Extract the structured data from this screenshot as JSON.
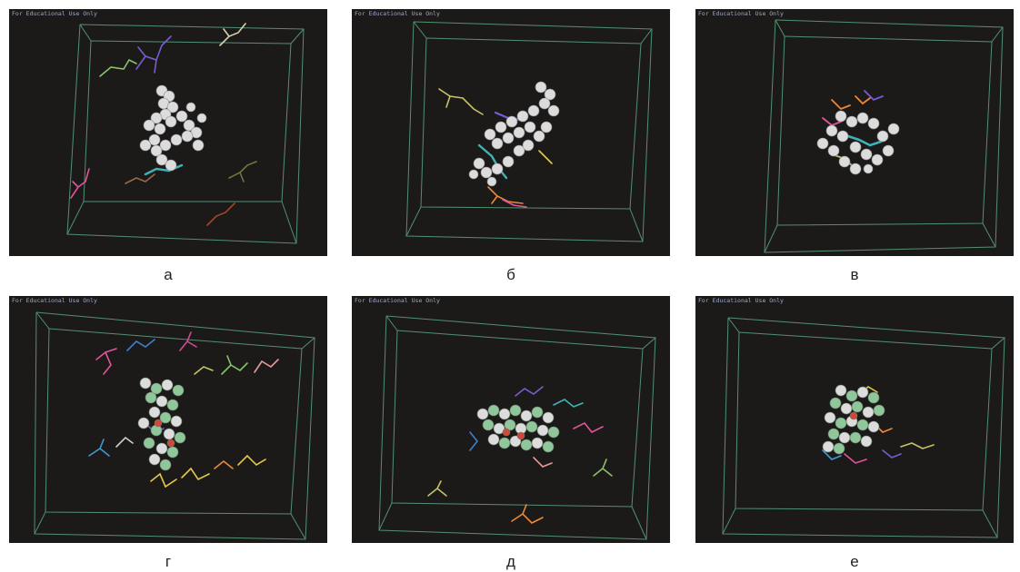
{
  "figure": {
    "panels": [
      {
        "label": "а",
        "watermark": "For Educational Use Only"
      },
      {
        "label": "б",
        "watermark": "For Educational Use Only"
      },
      {
        "label": "в",
        "watermark": "For Educational Use Only"
      },
      {
        "label": "г",
        "watermark": "For Educational Use Only"
      },
      {
        "label": "д",
        "watermark": "For Educational Use Only"
      },
      {
        "label": "е",
        "watermark": "For Educational Use Only"
      }
    ]
  },
  "colors": {
    "background": "#1c1a19",
    "box_edge": "#5fae8a",
    "core_white": "#dcdcdc",
    "core_green": "#8fc79a",
    "molecule_colors": [
      "#e0559a",
      "#7a5bd0",
      "#3fb2b8",
      "#c7c26a",
      "#88c26a",
      "#e9893a",
      "#e4c94a",
      "#d0d0d0",
      "#9a6a4a"
    ]
  }
}
